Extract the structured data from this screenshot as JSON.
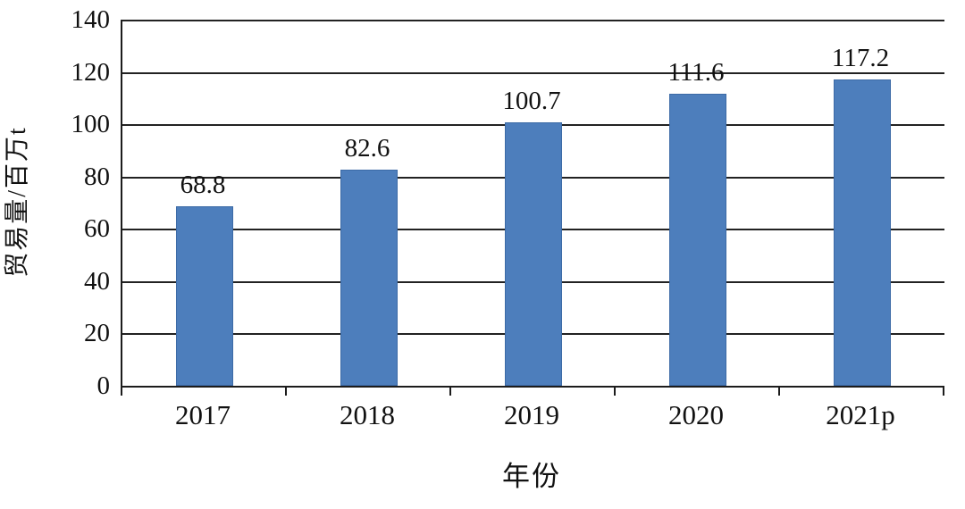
{
  "chart_data": {
    "type": "bar",
    "categories": [
      "2017",
      "2018",
      "2019",
      "2020",
      "2021p"
    ],
    "values": [
      68.8,
      82.6,
      100.7,
      111.6,
      117.2
    ],
    "value_labels": [
      "68.8",
      "82.6",
      "100.7",
      "111.6",
      "117.2"
    ],
    "title": "",
    "xlabel": "年份",
    "ylabel": "贸易量/百万t",
    "ylim": [
      0,
      140
    ],
    "yticks": [
      0,
      20,
      40,
      60,
      80,
      100,
      120,
      140
    ],
    "grid": true,
    "legend": "none",
    "bar_color": "#4d7ebc",
    "bar_border_color": "#3c6aa6"
  }
}
